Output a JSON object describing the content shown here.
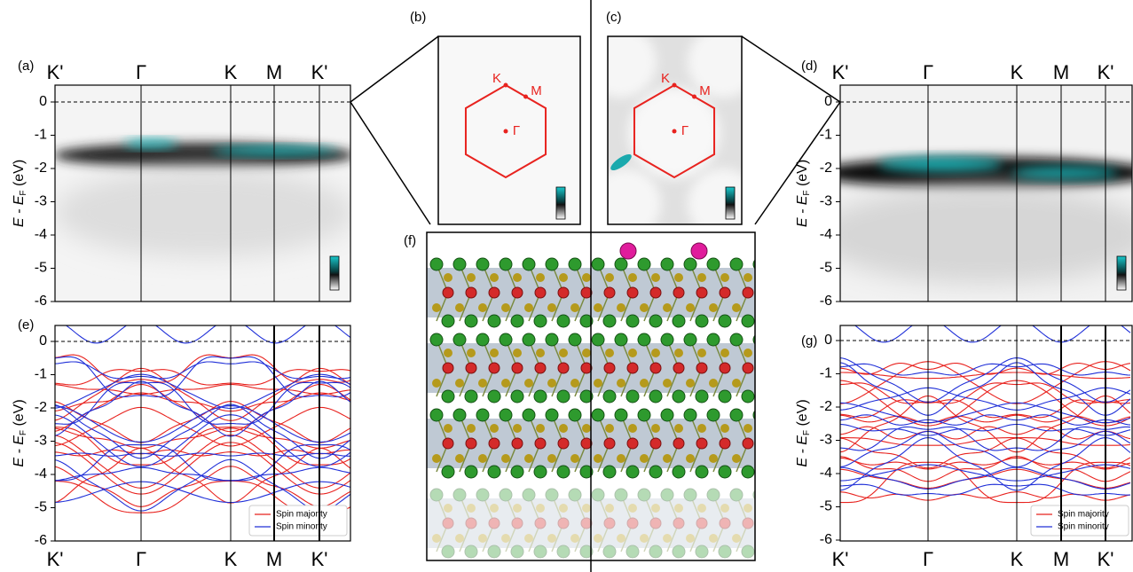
{
  "panels": {
    "a": {
      "label": "(a)",
      "kpoints": [
        "K'",
        "Γ",
        "K",
        "M",
        "K'"
      ],
      "y_axis": {
        "main": "E - E",
        "sub": "F",
        "unit": " (eV)"
      },
      "yticks": [
        0,
        -1,
        -2,
        -3,
        -4,
        -5,
        -6
      ]
    },
    "e": {
      "label": "(e)",
      "kpoints": [
        "K'",
        "Γ",
        "K",
        "M",
        "K'"
      ],
      "y_axis": {
        "main": "E - E",
        "sub": "F",
        "unit": " (eV)"
      },
      "yticks": [
        0,
        -1,
        -2,
        -3,
        -4,
        -5,
        -6
      ],
      "legend": [
        {
          "name": "Spin majority",
          "color": "#e8231f"
        },
        {
          "name": "Spin minority",
          "color": "#2030d8"
        }
      ]
    },
    "d": {
      "label": "(d)",
      "kpoints": [
        "K'",
        "Γ",
        "K",
        "M",
        "K'"
      ],
      "y_axis": {
        "main": "E - E",
        "sub": "F",
        "unit": " (eV)"
      },
      "yticks": [
        0,
        -1,
        -2,
        -3,
        -4,
        -5,
        -6
      ]
    },
    "g": {
      "label": "(g)",
      "kpoints": [
        "K'",
        "Γ",
        "K",
        "M",
        "K'"
      ],
      "y_axis": {
        "main": "E - E",
        "sub": "F",
        "unit": " (eV)"
      },
      "yticks": [
        0,
        -1,
        -2,
        -3,
        -4,
        -5,
        -6
      ],
      "legend": [
        {
          "name": "Spin majority",
          "color": "#e8231f"
        },
        {
          "name": "Spin minority",
          "color": "#2030d8"
        }
      ]
    },
    "b": {
      "label": "(b)",
      "points": [
        "K",
        "M",
        "Γ"
      ]
    },
    "c": {
      "label": "(c)",
      "points": [
        "K",
        "M",
        "Γ"
      ]
    },
    "f": {
      "label": "(f)"
    }
  }
}
